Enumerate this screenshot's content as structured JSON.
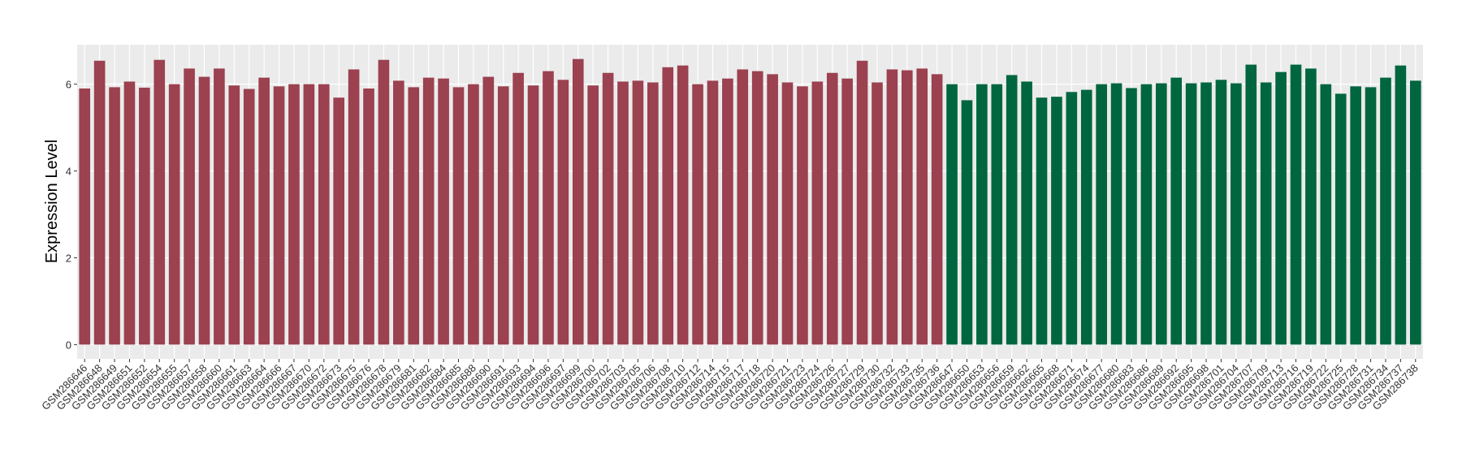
{
  "chart_data": {
    "type": "bar",
    "y_label": "Expression Level",
    "categories": [
      "GSM286646",
      "GSM286648",
      "GSM286649",
      "GSM286651",
      "GSM286652",
      "GSM286654",
      "GSM286655",
      "GSM286657",
      "GSM286658",
      "GSM286660",
      "GSM286661",
      "GSM286663",
      "GSM286664",
      "GSM286666",
      "GSM286667",
      "GSM286670",
      "GSM286672",
      "GSM286673",
      "GSM286675",
      "GSM286676",
      "GSM286678",
      "GSM286679",
      "GSM286681",
      "GSM286682",
      "GSM286684",
      "GSM286685",
      "GSM286688",
      "GSM286690",
      "GSM286691",
      "GSM286693",
      "GSM286694",
      "GSM286696",
      "GSM286697",
      "GSM286699",
      "GSM286700",
      "GSM286702",
      "GSM286703",
      "GSM286705",
      "GSM286706",
      "GSM286708",
      "GSM286710",
      "GSM286712",
      "GSM286714",
      "GSM286715",
      "GSM286717",
      "GSM286718",
      "GSM286720",
      "GSM286721",
      "GSM286723",
      "GSM286724",
      "GSM286726",
      "GSM286727",
      "GSM286729",
      "GSM286730",
      "GSM286732",
      "GSM286733",
      "GSM286735",
      "GSM286736",
      "GSM286647",
      "GSM286650",
      "GSM286653",
      "GSM286656",
      "GSM286659",
      "GSM286662",
      "GSM286665",
      "GSM286668",
      "GSM286671",
      "GSM286674",
      "GSM286677",
      "GSM286680",
      "GSM286683",
      "GSM286686",
      "GSM286689",
      "GSM286692",
      "GSM286695",
      "GSM286698",
      "GSM286701",
      "GSM286704",
      "GSM286707",
      "GSM286709",
      "GSM286713",
      "GSM286716",
      "GSM286719",
      "GSM286722",
      "GSM286725",
      "GSM286728",
      "GSM286731",
      "GSM286734",
      "GSM286737",
      "GSM286738"
    ],
    "values": [
      5.9,
      6.54,
      5.93,
      6.06,
      5.92,
      6.56,
      6.0,
      6.36,
      6.17,
      6.36,
      5.97,
      5.89,
      6.15,
      5.95,
      6.0,
      6.0,
      6.0,
      5.69,
      6.34,
      5.9,
      6.56,
      6.08,
      5.93,
      6.15,
      6.13,
      5.93,
      6.0,
      6.17,
      5.95,
      6.26,
      5.97,
      6.3,
      6.1,
      6.58,
      5.97,
      6.26,
      6.06,
      6.08,
      6.04,
      6.39,
      6.43,
      6.0,
      6.08,
      6.13,
      6.34,
      6.3,
      6.23,
      6.04,
      5.95,
      6.06,
      6.26,
      6.13,
      6.54,
      6.04,
      6.34,
      6.32,
      6.36,
      6.23,
      6.0,
      5.63,
      6.0,
      6.0,
      6.21,
      6.06,
      5.69,
      5.71,
      5.82,
      5.87,
      6.0,
      6.02,
      5.91,
      6.0,
      6.02,
      6.15,
      6.02,
      6.04,
      6.1,
      6.02,
      6.45,
      6.04,
      6.28,
      6.45,
      6.36,
      6.0,
      5.78,
      5.95,
      5.93,
      6.15,
      6.43,
      6.08
    ],
    "colors": [
      "#9b4150",
      "#9b4150",
      "#9b4150",
      "#9b4150",
      "#9b4150",
      "#9b4150",
      "#9b4150",
      "#9b4150",
      "#9b4150",
      "#9b4150",
      "#9b4150",
      "#9b4150",
      "#9b4150",
      "#9b4150",
      "#9b4150",
      "#9b4150",
      "#9b4150",
      "#9b4150",
      "#9b4150",
      "#9b4150",
      "#9b4150",
      "#9b4150",
      "#9b4150",
      "#9b4150",
      "#9b4150",
      "#9b4150",
      "#9b4150",
      "#9b4150",
      "#9b4150",
      "#9b4150",
      "#9b4150",
      "#9b4150",
      "#9b4150",
      "#9b4150",
      "#9b4150",
      "#9b4150",
      "#9b4150",
      "#9b4150",
      "#9b4150",
      "#9b4150",
      "#9b4150",
      "#9b4150",
      "#9b4150",
      "#9b4150",
      "#9b4150",
      "#9b4150",
      "#9b4150",
      "#9b4150",
      "#9b4150",
      "#9b4150",
      "#9b4150",
      "#9b4150",
      "#9b4150",
      "#9b4150",
      "#9b4150",
      "#9b4150",
      "#9b4150",
      "#9b4150",
      "#00663f",
      "#00663f",
      "#00663f",
      "#00663f",
      "#00663f",
      "#00663f",
      "#00663f",
      "#00663f",
      "#00663f",
      "#00663f",
      "#00663f",
      "#00663f",
      "#00663f",
      "#00663f",
      "#00663f",
      "#00663f",
      "#00663f",
      "#00663f",
      "#00663f",
      "#00663f",
      "#00663f",
      "#00663f",
      "#00663f",
      "#00663f",
      "#00663f",
      "#00663f",
      "#00663f",
      "#00663f",
      "#00663f",
      "#00663f",
      "#00663f",
      "#00663f"
    ],
    "ylim": [
      -0.33,
      6.91
    ],
    "yticks": [
      0,
      2,
      4,
      6
    ],
    "grid": true
  }
}
